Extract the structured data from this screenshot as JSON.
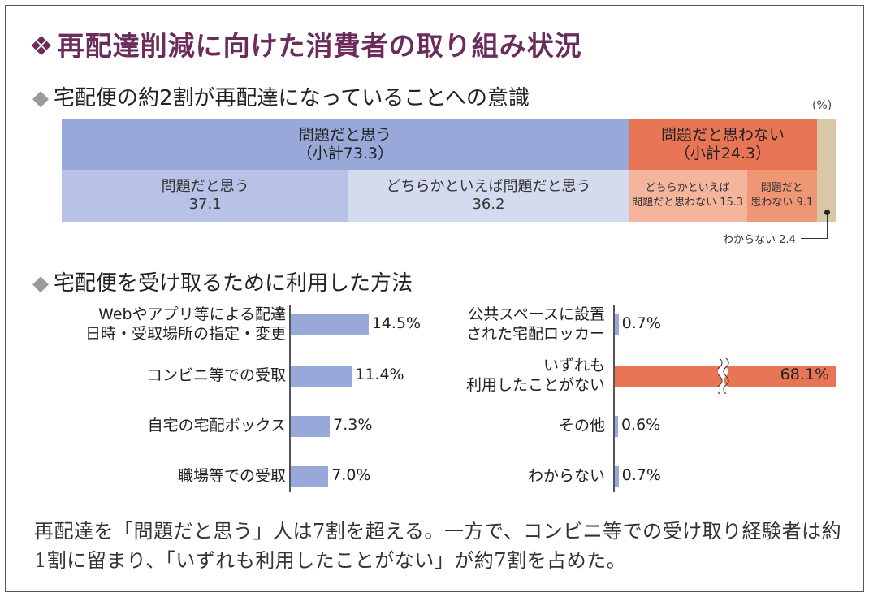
{
  "title": "再配達削減に向けた消費者の取り組み状況",
  "title_mark": "❖",
  "caption": "再配達を「問題だと思う」人は7割を超える。一方で、コンビニ等での受け取り経験者は約1割に留まり、「いずれも利用したことがない」が約7割を占めた。",
  "chart_data": [
    {
      "type": "bar",
      "stacked": true,
      "orientation": "horizontal",
      "title": "宅配便の約2割が再配達になっていることへの意識",
      "unit": "(%)",
      "groups": [
        {
          "label": "問題だと思う",
          "subtotal_label": "（小計73.3）",
          "subtotal": 73.3,
          "color": "#98a8d8"
        },
        {
          "label": "問題だと思わない",
          "subtotal_label": "（小計24.3）",
          "subtotal": 24.3,
          "color": "#e87656"
        }
      ],
      "segments": [
        {
          "name": "問題だと思う",
          "value": 37.1,
          "value_label": "37.1",
          "group": 0,
          "color": "#b7c2e6"
        },
        {
          "name": "どちらかといえば問題だと思う",
          "value": 36.2,
          "value_label": "36.2",
          "group": 0,
          "color": "#d5dbef"
        },
        {
          "name": "どちらかといえば問題だと思わない",
          "line1": "どちらかといえば",
          "line2": "問題だと思わない 15.3",
          "value": 15.3,
          "group": 1,
          "color": "#f5b59c"
        },
        {
          "name": "問題だと思わない",
          "line1": "問題だと",
          "line2": "思わない 9.1",
          "value": 9.1,
          "group": 1,
          "color": "#ef9674"
        },
        {
          "name": "わからない",
          "value": 2.4,
          "note": "わからない 2.4",
          "color": "#d8c8a8"
        }
      ]
    },
    {
      "type": "bar",
      "orientation": "horizontal",
      "title": "宅配便を受け取るために利用した方法",
      "colors": {
        "normal": "#98a8d8",
        "highlight": "#e87656"
      },
      "columns": [
        [
          {
            "line1": "Webやアプリ等による配達",
            "line2": "日時・受取場所の指定・変更",
            "value": 14.5,
            "value_label": "14.5%"
          },
          {
            "line1": "コンビニ等での受取",
            "line2": "",
            "value": 11.4,
            "value_label": "11.4%"
          },
          {
            "line1": "自宅の宅配ボックス",
            "line2": "",
            "value": 7.3,
            "value_label": "7.3%"
          },
          {
            "line1": "職場等での受取",
            "line2": "",
            "value": 7.0,
            "value_label": "7.0%"
          }
        ],
        [
          {
            "line1": "公共スペースに設置",
            "line2": "された宅配ロッカー",
            "value": 0.7,
            "value_label": "0.7%"
          },
          {
            "line1": "いずれも",
            "line2": "利用したことがない",
            "value": 68.1,
            "value_label": "68.1%",
            "highlight": true,
            "broken_axis": true
          },
          {
            "line1": "その他",
            "line2": "",
            "value": 0.6,
            "value_label": "0.6%"
          },
          {
            "line1": "わからない",
            "line2": "",
            "value": 0.7,
            "value_label": "0.7%"
          }
        ]
      ]
    }
  ]
}
